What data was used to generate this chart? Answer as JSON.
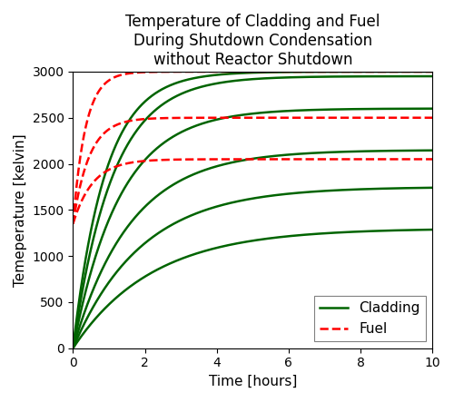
{
  "title": "Temperature of Cladding and Fuel\nDuring Shutdown Condensation\nwithout Reactor Shutdown",
  "xlabel": "Time [hours]",
  "ylabel": "Temeperature [kelvin]",
  "xlim": [
    0,
    10
  ],
  "ylim": [
    0,
    3000
  ],
  "xticks": [
    0,
    2,
    4,
    6,
    8,
    10
  ],
  "yticks": [
    0,
    500,
    1000,
    1500,
    2000,
    2500,
    3000
  ],
  "cladding_params": [
    {
      "T0": 0,
      "T_inf": 1300,
      "tau": 2.2
    },
    {
      "T0": 0,
      "T_inf": 1750,
      "tau": 1.9
    },
    {
      "T0": 0,
      "T_inf": 2150,
      "tau": 1.6
    },
    {
      "T0": 0,
      "T_inf": 2600,
      "tau": 1.3
    },
    {
      "T0": 0,
      "T_inf": 2950,
      "tau": 1.1
    },
    {
      "T0": 0,
      "T_inf": 3000,
      "tau": 0.9
    }
  ],
  "fuel_params": [
    {
      "T0": 1350,
      "T_inf": 2050,
      "tau": 0.55
    },
    {
      "T0": 1350,
      "T_inf": 2500,
      "tau": 0.45
    },
    {
      "T0": 1350,
      "T_inf": 3000,
      "tau": 0.35
    }
  ],
  "cladding_color": "#006400",
  "fuel_color": "#ff0000",
  "linewidth": 1.8,
  "title_fontsize": 12,
  "label_fontsize": 11,
  "tick_fontsize": 10,
  "legend_fontsize": 11
}
